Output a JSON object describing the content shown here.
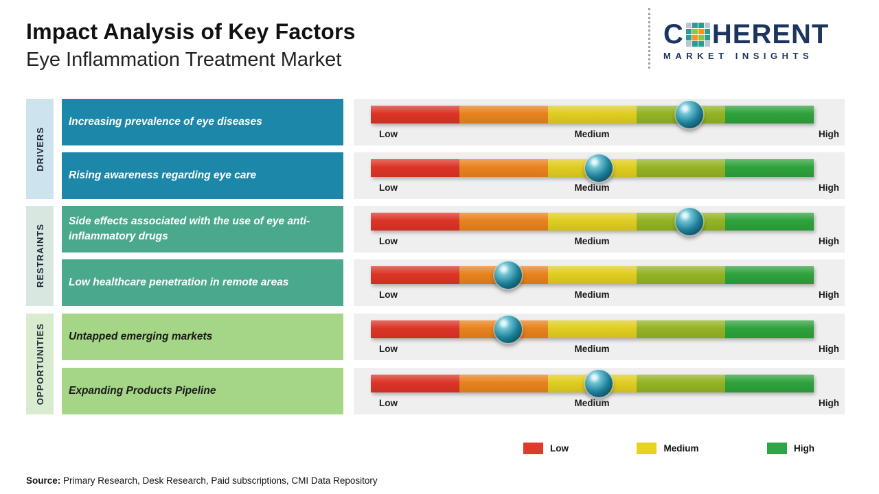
{
  "header": {
    "title": "Impact Analysis of Key Factors",
    "subtitle": "Eye Inflammation Treatment Market"
  },
  "logo": {
    "prefix": "C",
    "suffix": "HERENT",
    "tagline": "MARKET INSIGHTS",
    "color": "#1c355e"
  },
  "groups": [
    {
      "label": "DRIVERS"
    },
    {
      "label": "RESTRAINTS"
    },
    {
      "label": "OPPORTUNITIES"
    }
  ],
  "scale": {
    "low": "Low",
    "medium": "Medium",
    "high": "High"
  },
  "rows": [
    {
      "group": "Drivers",
      "factor": "Increasing prevalence of eye diseases",
      "position_pct": 72,
      "impact_level": "Medium-High"
    },
    {
      "group": "Drivers",
      "factor": "Rising awareness regarding eye care",
      "position_pct": 51.5,
      "impact_level": "Medium"
    },
    {
      "group": "Restraints",
      "factor": "Side effects associated with the use of eye anti-inflammatory drugs",
      "position_pct": 72,
      "impact_level": "Medium-High"
    },
    {
      "group": "Restraints",
      "factor": "Low healthcare penetration in remote areas",
      "position_pct": 31,
      "impact_level": "Low-Medium"
    },
    {
      "group": "Opportunities",
      "factor": "Untapped emerging markets",
      "position_pct": 31,
      "impact_level": "Low-Medium"
    },
    {
      "group": "Opportunities",
      "factor": "Expanding Products Pipeline",
      "position_pct": 51.5,
      "impact_level": "Medium"
    }
  ],
  "legend": [
    {
      "label": "Low",
      "color": "#e03b2a"
    },
    {
      "label": "Medium",
      "color": "#e8d31f"
    },
    {
      "label": "High",
      "color": "#2fa54a"
    }
  ],
  "source": {
    "label": "Source:",
    "text": " Primary Research, Desk Research, Paid subscriptions, CMI Data Repository"
  },
  "chart_data": {
    "type": "table",
    "title": "Impact Analysis of Key Factors",
    "subtitle": "Eye Inflammation Treatment Market",
    "scale": [
      "Low",
      "Medium",
      "High"
    ],
    "scale_colors": [
      "#dc3426",
      "#e8821e",
      "#e0cd20",
      "#93b324",
      "#2ea23c"
    ],
    "legend": [
      "Low",
      "Medium",
      "High"
    ],
    "rows": [
      {
        "group": "Drivers",
        "factor": "Increasing prevalence of eye diseases",
        "impact_position_pct": 72,
        "impact_level": "Medium-High"
      },
      {
        "group": "Drivers",
        "factor": "Rising awareness regarding eye care",
        "impact_position_pct": 51.5,
        "impact_level": "Medium"
      },
      {
        "group": "Restraints",
        "factor": "Side effects associated with the use of eye anti-inflammatory drugs",
        "impact_position_pct": 72,
        "impact_level": "Medium-High"
      },
      {
        "group": "Restraints",
        "factor": "Low healthcare penetration in remote areas",
        "impact_position_pct": 31,
        "impact_level": "Low-Medium"
      },
      {
        "group": "Opportunities",
        "factor": "Untapped emerging markets",
        "impact_position_pct": 31,
        "impact_level": "Low-Medium"
      },
      {
        "group": "Opportunities",
        "factor": "Expanding Products Pipeline",
        "impact_position_pct": 51.5,
        "impact_level": "Medium"
      }
    ]
  }
}
